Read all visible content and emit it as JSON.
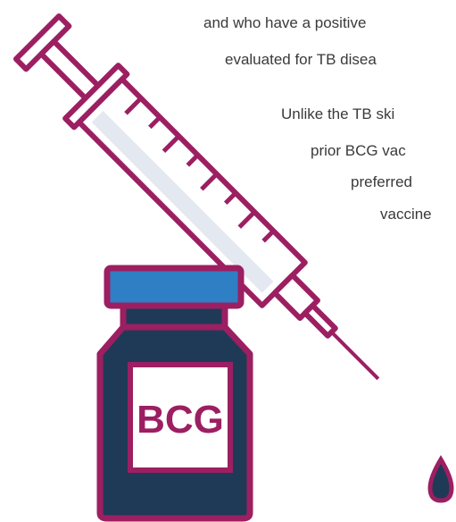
{
  "text_lines": [
    "and who have a positive",
    "evaluated for TB disea",
    "Unlike the TB ski",
    "prior BCG vac",
    "preferred",
    "vaccine"
  ],
  "vial": {
    "label": "BCG"
  }
}
